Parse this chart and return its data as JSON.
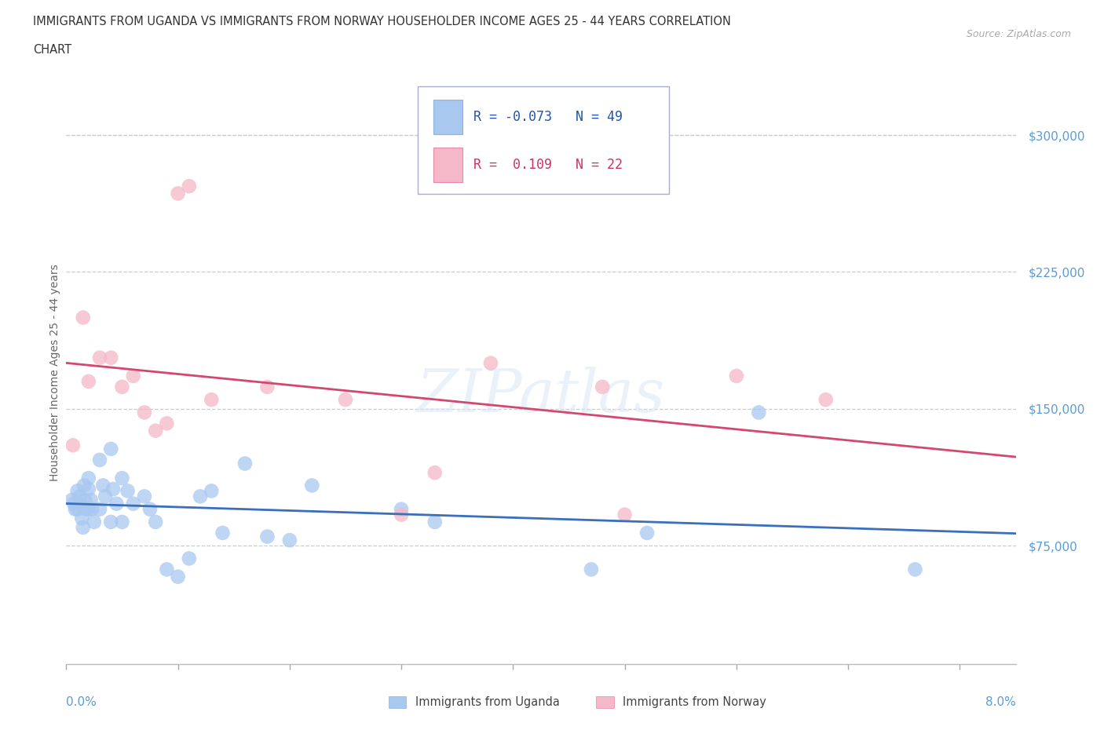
{
  "title_line1": "IMMIGRANTS FROM UGANDA VS IMMIGRANTS FROM NORWAY HOUSEHOLDER INCOME AGES 25 - 44 YEARS CORRELATION",
  "title_line2": "CHART",
  "source": "Source: ZipAtlas.com",
  "ylabel": "Householder Income Ages 25 - 44 years",
  "legend_uganda": "Immigrants from Uganda",
  "legend_norway": "Immigrants from Norway",
  "R_uganda": -0.073,
  "N_uganda": 49,
  "R_norway": 0.109,
  "N_norway": 22,
  "color_uganda": "#a8c8f0",
  "color_norway": "#f5b8c8",
  "line_color_uganda": "#3a6fbb",
  "line_color_norway": "#d44870",
  "ytick_labels": [
    "$75,000",
    "$150,000",
    "$225,000",
    "$300,000"
  ],
  "ytick_values": [
    75000,
    150000,
    225000,
    300000
  ],
  "ymin": 10000,
  "ymax": 330000,
  "xmin": 0.0,
  "xmax": 0.085,
  "uganda_x": [
    0.0005,
    0.0007,
    0.0008,
    0.001,
    0.001,
    0.0012,
    0.0013,
    0.0014,
    0.0015,
    0.0016,
    0.0017,
    0.0018,
    0.002,
    0.002,
    0.002,
    0.0022,
    0.0023,
    0.0025,
    0.003,
    0.003,
    0.0033,
    0.0035,
    0.004,
    0.004,
    0.0042,
    0.0045,
    0.005,
    0.005,
    0.0055,
    0.006,
    0.007,
    0.0075,
    0.008,
    0.009,
    0.01,
    0.011,
    0.012,
    0.013,
    0.014,
    0.016,
    0.018,
    0.02,
    0.022,
    0.03,
    0.033,
    0.047,
    0.052,
    0.062,
    0.076
  ],
  "uganda_y": [
    100000,
    98000,
    95000,
    105000,
    95000,
    102000,
    97000,
    90000,
    85000,
    108000,
    100000,
    95000,
    112000,
    106000,
    95000,
    100000,
    95000,
    88000,
    122000,
    95000,
    108000,
    102000,
    128000,
    88000,
    106000,
    98000,
    112000,
    88000,
    105000,
    98000,
    102000,
    95000,
    88000,
    62000,
    58000,
    68000,
    102000,
    105000,
    82000,
    120000,
    80000,
    78000,
    108000,
    95000,
    88000,
    62000,
    82000,
    148000,
    62000
  ],
  "norway_x": [
    0.0006,
    0.0015,
    0.002,
    0.003,
    0.004,
    0.005,
    0.006,
    0.007,
    0.008,
    0.009,
    0.01,
    0.011,
    0.013,
    0.018,
    0.025,
    0.03,
    0.033,
    0.038,
    0.048,
    0.05,
    0.06,
    0.068
  ],
  "norway_y": [
    130000,
    200000,
    165000,
    178000,
    178000,
    162000,
    168000,
    148000,
    138000,
    142000,
    268000,
    272000,
    155000,
    162000,
    155000,
    92000,
    115000,
    175000,
    162000,
    92000,
    168000,
    155000
  ]
}
